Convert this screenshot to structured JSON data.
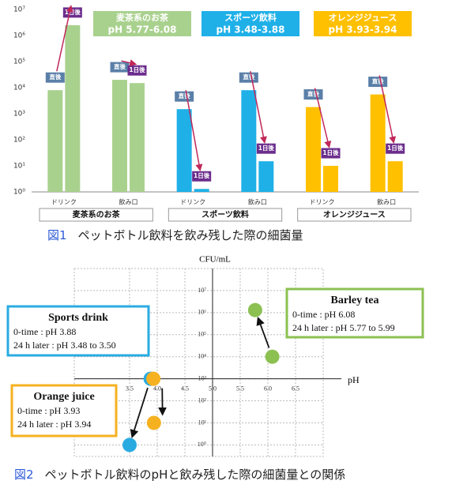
{
  "chart_data": [
    {
      "type": "bar",
      "log_scale": true,
      "ylim": [
        1,
        10000000
      ],
      "yticks": [
        {
          "value": 1,
          "label": "10⁰"
        },
        {
          "value": 10,
          "label": "10¹"
        },
        {
          "value": 100,
          "label": "10²"
        },
        {
          "value": 1000,
          "label": "10³"
        },
        {
          "value": 10000,
          "label": "10⁴"
        },
        {
          "value": 100000,
          "label": "10⁵"
        },
        {
          "value": 1000000,
          "label": "10⁶"
        },
        {
          "value": 10000000,
          "label": "10⁷"
        }
      ],
      "categories": [
        "ドリンク",
        "飲み口",
        "ドリンク",
        "飲み口",
        "ドリンク",
        "飲み口"
      ],
      "groups": [
        {
          "name": "麦茶系のお茶",
          "ph": "pH 5.77-6.08",
          "color": "#a9d18e"
        },
        {
          "name": "スポーツ飲料",
          "ph": "pH 3.48-3.88",
          "color": "#1fb0e8"
        },
        {
          "name": "オレンジジュース",
          "ph": "pH 3.93-3.94",
          "color": "#ffc000"
        }
      ],
      "series": [
        {
          "name": "直後",
          "color": "#5a7fa8",
          "values": [
            8000,
            20000,
            1500,
            8000,
            1800,
            5500
          ]
        },
        {
          "name": "1日後",
          "color": "#6b2d8c",
          "values": [
            2500000,
            15000,
            1.3,
            15,
            10,
            15
          ]
        }
      ],
      "caption_label": "図1",
      "caption": "ペットボトル飲料を飲み残した際の細菌量"
    },
    {
      "type": "scatter",
      "log_scale_y": true,
      "x_label": "pH",
      "y_label": "CFU/mL",
      "xlim": [
        2.5,
        7.0
      ],
      "ylim": [
        0.3,
        100000000
      ],
      "xticks": [
        {
          "value": 3.5,
          "label": "3.5"
        },
        {
          "value": 4.0,
          "label": "4.0"
        },
        {
          "value": 4.5,
          "label": "4.5"
        },
        {
          "value": 5.0,
          "label": "5.0"
        },
        {
          "value": 5.5,
          "label": "5.5"
        },
        {
          "value": 6.0,
          "label": "6.0"
        },
        {
          "value": 6.5,
          "label": "6.5"
        }
      ],
      "yticks": [
        {
          "value": 1,
          "label": "10⁰"
        },
        {
          "value": 10,
          "label": "10¹"
        },
        {
          "value": 100,
          "label": "10²"
        },
        {
          "value": 1000,
          "label": "10³"
        },
        {
          "value": 10000,
          "label": "10⁴"
        },
        {
          "value": 100000,
          "label": "10⁵"
        },
        {
          "value": 1000000,
          "label": "10⁶"
        },
        {
          "value": 10000000,
          "label": "10⁷"
        }
      ],
      "axis_cross": {
        "x": 5.0,
        "y": 1000
      },
      "series": [
        {
          "name": "Barley tea",
          "color": "#8cc152",
          "x": [
            6.08,
            5.77
          ],
          "values": [
            10000,
            1300000
          ],
          "notes": [
            "0-time : pH 6.08",
            "24 h later : pH 5.77 to 5.99"
          ]
        },
        {
          "name": "Sports drink",
          "color": "#29abe2",
          "x": [
            3.88,
            3.5
          ],
          "values": [
            1000,
            1
          ],
          "notes": [
            "0-time : pH 3.88",
            "24 h later : pH 3.48 to 3.50"
          ]
        },
        {
          "name": "Orange juice",
          "color": "#f5b120",
          "x": [
            3.93,
            3.94
          ],
          "values": [
            1000,
            10
          ],
          "notes": [
            "0-time : pH 3.93",
            "24 h later : pH 3.94"
          ]
        }
      ],
      "caption_label": "図2",
      "caption": "ペットボトル飲料のpHと飲み残した際の細菌量との関係"
    }
  ]
}
